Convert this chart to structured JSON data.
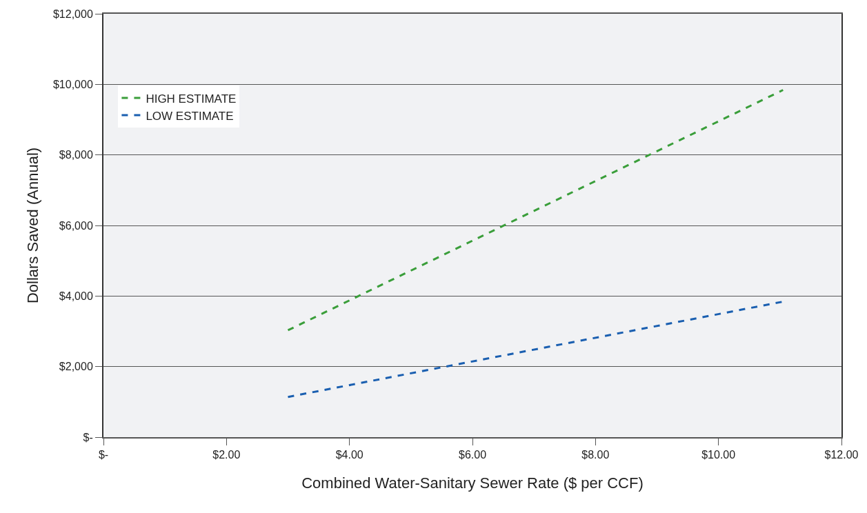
{
  "chart_data": {
    "type": "line",
    "xlabel": "Combined Water-Sanitary Sewer Rate ($ per CCF)",
    "ylabel": "Dollars Saved (Annual)",
    "x": [
      3.0,
      11.05
    ],
    "series": [
      {
        "name": "HIGH ESTIMATE",
        "color": "#3a9e3a",
        "values": [
          3030,
          9840
        ],
        "line_style": "dashed"
      },
      {
        "name": "LOW ESTIMATE",
        "color": "#1a5fb0",
        "values": [
          1140,
          3840
        ],
        "line_style": "dashed"
      }
    ],
    "xlim": [
      0,
      12
    ],
    "xticks": [
      {
        "value": 0,
        "label": "$-"
      },
      {
        "value": 2,
        "label": "$2.00"
      },
      {
        "value": 4,
        "label": "$4.00"
      },
      {
        "value": 6,
        "label": "$6.00"
      },
      {
        "value": 8,
        "label": "$8.00"
      },
      {
        "value": 10,
        "label": "$10.00"
      },
      {
        "value": 12,
        "label": "$12.00"
      }
    ],
    "ylim": [
      0,
      12000
    ],
    "yticks": [
      {
        "value": 0,
        "label": "$-"
      },
      {
        "value": 2000,
        "label": "$2,000"
      },
      {
        "value": 4000,
        "label": "$4,000"
      },
      {
        "value": 6000,
        "label": "$6,000"
      },
      {
        "value": 8000,
        "label": "$8,000"
      },
      {
        "value": 10000,
        "label": "$10,000"
      },
      {
        "value": 12000,
        "label": "$12,000"
      }
    ],
    "grid": "y",
    "legend": "top left",
    "marker": "none"
  }
}
